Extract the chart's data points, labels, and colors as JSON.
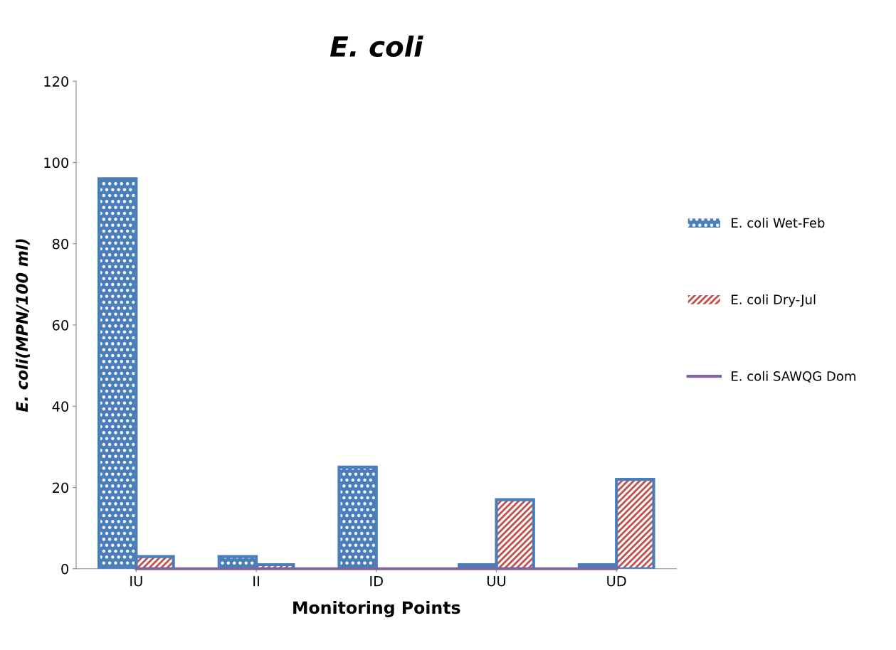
{
  "chart_data": {
    "type": "bar",
    "title": "E. coli",
    "xlabel": "Monitoring Points",
    "ylabel": "E. coli(MPN/100 ml)",
    "categories": [
      "IU",
      "II",
      "ID",
      "UU",
      "UD"
    ],
    "series": [
      {
        "name": "E. coli Wet-Feb",
        "color": "#4a7ebb",
        "values": [
          96,
          3,
          25,
          1,
          1
        ]
      },
      {
        "name": "E. coli Dry-Jul",
        "color": "#c0504d",
        "values": [
          3,
          1,
          null,
          17,
          22
        ]
      },
      {
        "name": "E. coli SAWQG Dom",
        "type": "line",
        "color": "#8064a2",
        "values": [
          0,
          0,
          0,
          0,
          0
        ]
      }
    ],
    "ylim": [
      0,
      120
    ],
    "yticks": [
      0,
      20,
      40,
      60,
      80,
      100,
      120
    ],
    "grid": false,
    "legend": "right"
  }
}
